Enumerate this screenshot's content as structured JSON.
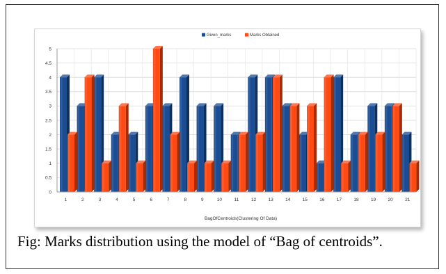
{
  "caption": "Fig: Marks distribution using the model of “Bag of centroids”.",
  "colors": {
    "given": "#1a4d94",
    "obtained": "#ff4a14",
    "grid": "#d8d8d8",
    "axis_text": "#333333"
  },
  "chart_data": {
    "type": "bar",
    "categories": [
      "1",
      "2",
      "3",
      "4",
      "5",
      "6",
      "7",
      "8",
      "9",
      "10",
      "11",
      "12",
      "13",
      "14",
      "15",
      "16",
      "17",
      "18",
      "19",
      "20",
      "21"
    ],
    "series": [
      {
        "name": "Given_marks",
        "values": [
          4,
          3,
          4,
          2,
          2,
          3,
          3,
          4,
          3,
          3,
          2,
          4,
          4,
          3,
          2,
          1,
          4,
          2,
          3,
          3,
          2
        ]
      },
      {
        "name": "Marks Obtained",
        "values": [
          2,
          4,
          1,
          3,
          1,
          5,
          2,
          1,
          1,
          1,
          2,
          2,
          4,
          3,
          3,
          4,
          1,
          2,
          2,
          3,
          1
        ]
      }
    ],
    "xlabel": "BagOfCentroids(Clustering Of Data)",
    "ylabel": "",
    "ylim": [
      0,
      5
    ],
    "yticks": [
      0,
      0.5,
      1,
      1.5,
      2,
      2.5,
      3,
      3.5,
      4,
      4.5,
      5
    ],
    "ytick_labels": [
      "0",
      "0.5",
      "1",
      "1.5",
      "2",
      "2.5",
      "3",
      "3.5",
      "4",
      "4.5",
      "5"
    ],
    "grid": true,
    "legend_position": "top-center"
  }
}
